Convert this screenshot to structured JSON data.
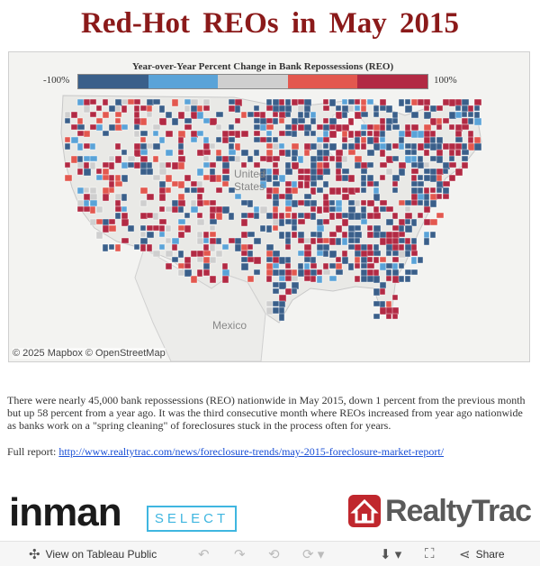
{
  "title": "Red-Hot REOs in May 2015",
  "map": {
    "legend": {
      "title": "Year-over-Year Percent Change in Bank Repossessions (REO)",
      "min_label": "-100%",
      "max_label": "100%",
      "colors": [
        "#3a5f8a",
        "#5aa3d8",
        "#cfcfcf",
        "#e3584f",
        "#b22a44"
      ]
    },
    "labels": {
      "country_us": "United States",
      "country_us_line1": "United",
      "country_us_line2": "States",
      "country_mx": "Mexico"
    },
    "attribution": "© 2025 Mapbox  © OpenStreetMap"
  },
  "description": "There were nearly 45,000 bank repossessions (REO) nationwide in May 2015, down 1 percent from the previous month but up 58 percent from a year ago. It was the third consecutive month where REOs increased from year ago nationwide as banks work on a \"spring cleaning\" of foreclosures stuck in the process often for years.",
  "report": {
    "label": "Full report:",
    "url": "http://www.realtytrac.com/news/foreclosure-trends/may-2015-foreclosure-market-report/"
  },
  "logos": {
    "inman": "inman",
    "select": "SELECT",
    "realtytrac": "RealtyTrac"
  },
  "toolbar": {
    "view_label": "View on Tableau Public",
    "share_label": "Share"
  }
}
